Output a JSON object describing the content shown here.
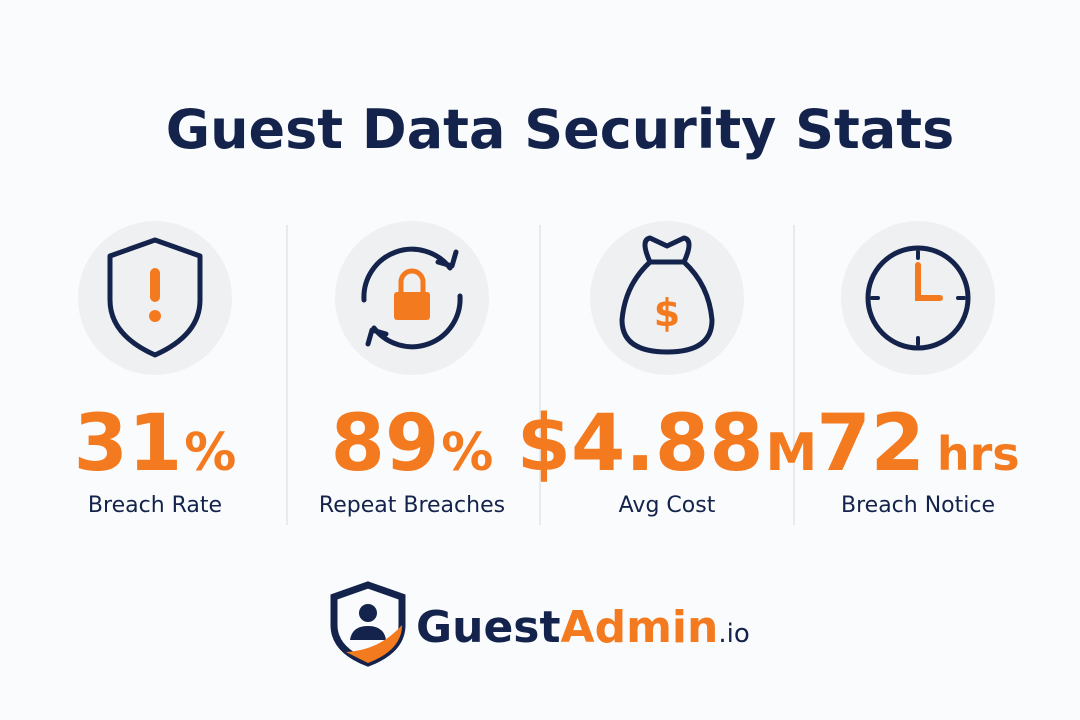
{
  "header": {
    "title": "Guest Data Security Stats"
  },
  "stats": [
    {
      "value": "31",
      "unit": "%",
      "label": "Breach Rate"
    },
    {
      "value": "89",
      "unit": "%",
      "label": "Repeat Breaches"
    },
    {
      "value": "$4.88",
      "unit": "M",
      "label": "Avg Cost"
    },
    {
      "value": "72",
      "unit": "hrs",
      "label": "Breach Notice"
    }
  ],
  "logo": {
    "part1": "Guest",
    "part2": "Admin",
    "suffix": ".io"
  }
}
